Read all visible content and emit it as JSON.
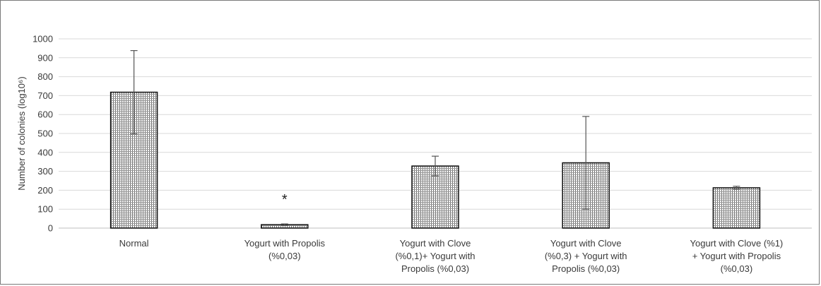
{
  "chart_data": {
    "type": "bar",
    "title": "",
    "xlabel": "",
    "ylabel": "Number of colonies (log10⁶)",
    "ylim": [
      0,
      1000
    ],
    "yticks": [
      0,
      100,
      200,
      300,
      400,
      500,
      600,
      700,
      800,
      900,
      1000
    ],
    "grid": true,
    "legend": "none",
    "categories": [
      [
        "Normal"
      ],
      [
        "Yogurt with Propolis",
        "(%0,03)"
      ],
      [
        "Yogurt with Clove",
        "(%0,1)+   Yogurt with",
        "Propolis (%0,03)"
      ],
      [
        "Yogurt with Clove",
        "(%0,3) + Yogurt with",
        "Propolis (%0,03)"
      ],
      [
        "Yogurt with Clove (%1)",
        "+ Yogurt with Propolis",
        "(%0,03)"
      ]
    ],
    "values": [
      718,
      18,
      328,
      345,
      213
    ],
    "error_bars": [
      220,
      4,
      52,
      245,
      8
    ],
    "annotations": [
      {
        "category_index": 1,
        "text": "*"
      }
    ],
    "colors": {
      "bar_fill": "#ffffff",
      "bar_hatch": "#6e6e6e",
      "bar_edge": "#111111",
      "grid": "#d9d9d9",
      "axis": "#bfbfbf",
      "error": "#555555"
    }
  }
}
